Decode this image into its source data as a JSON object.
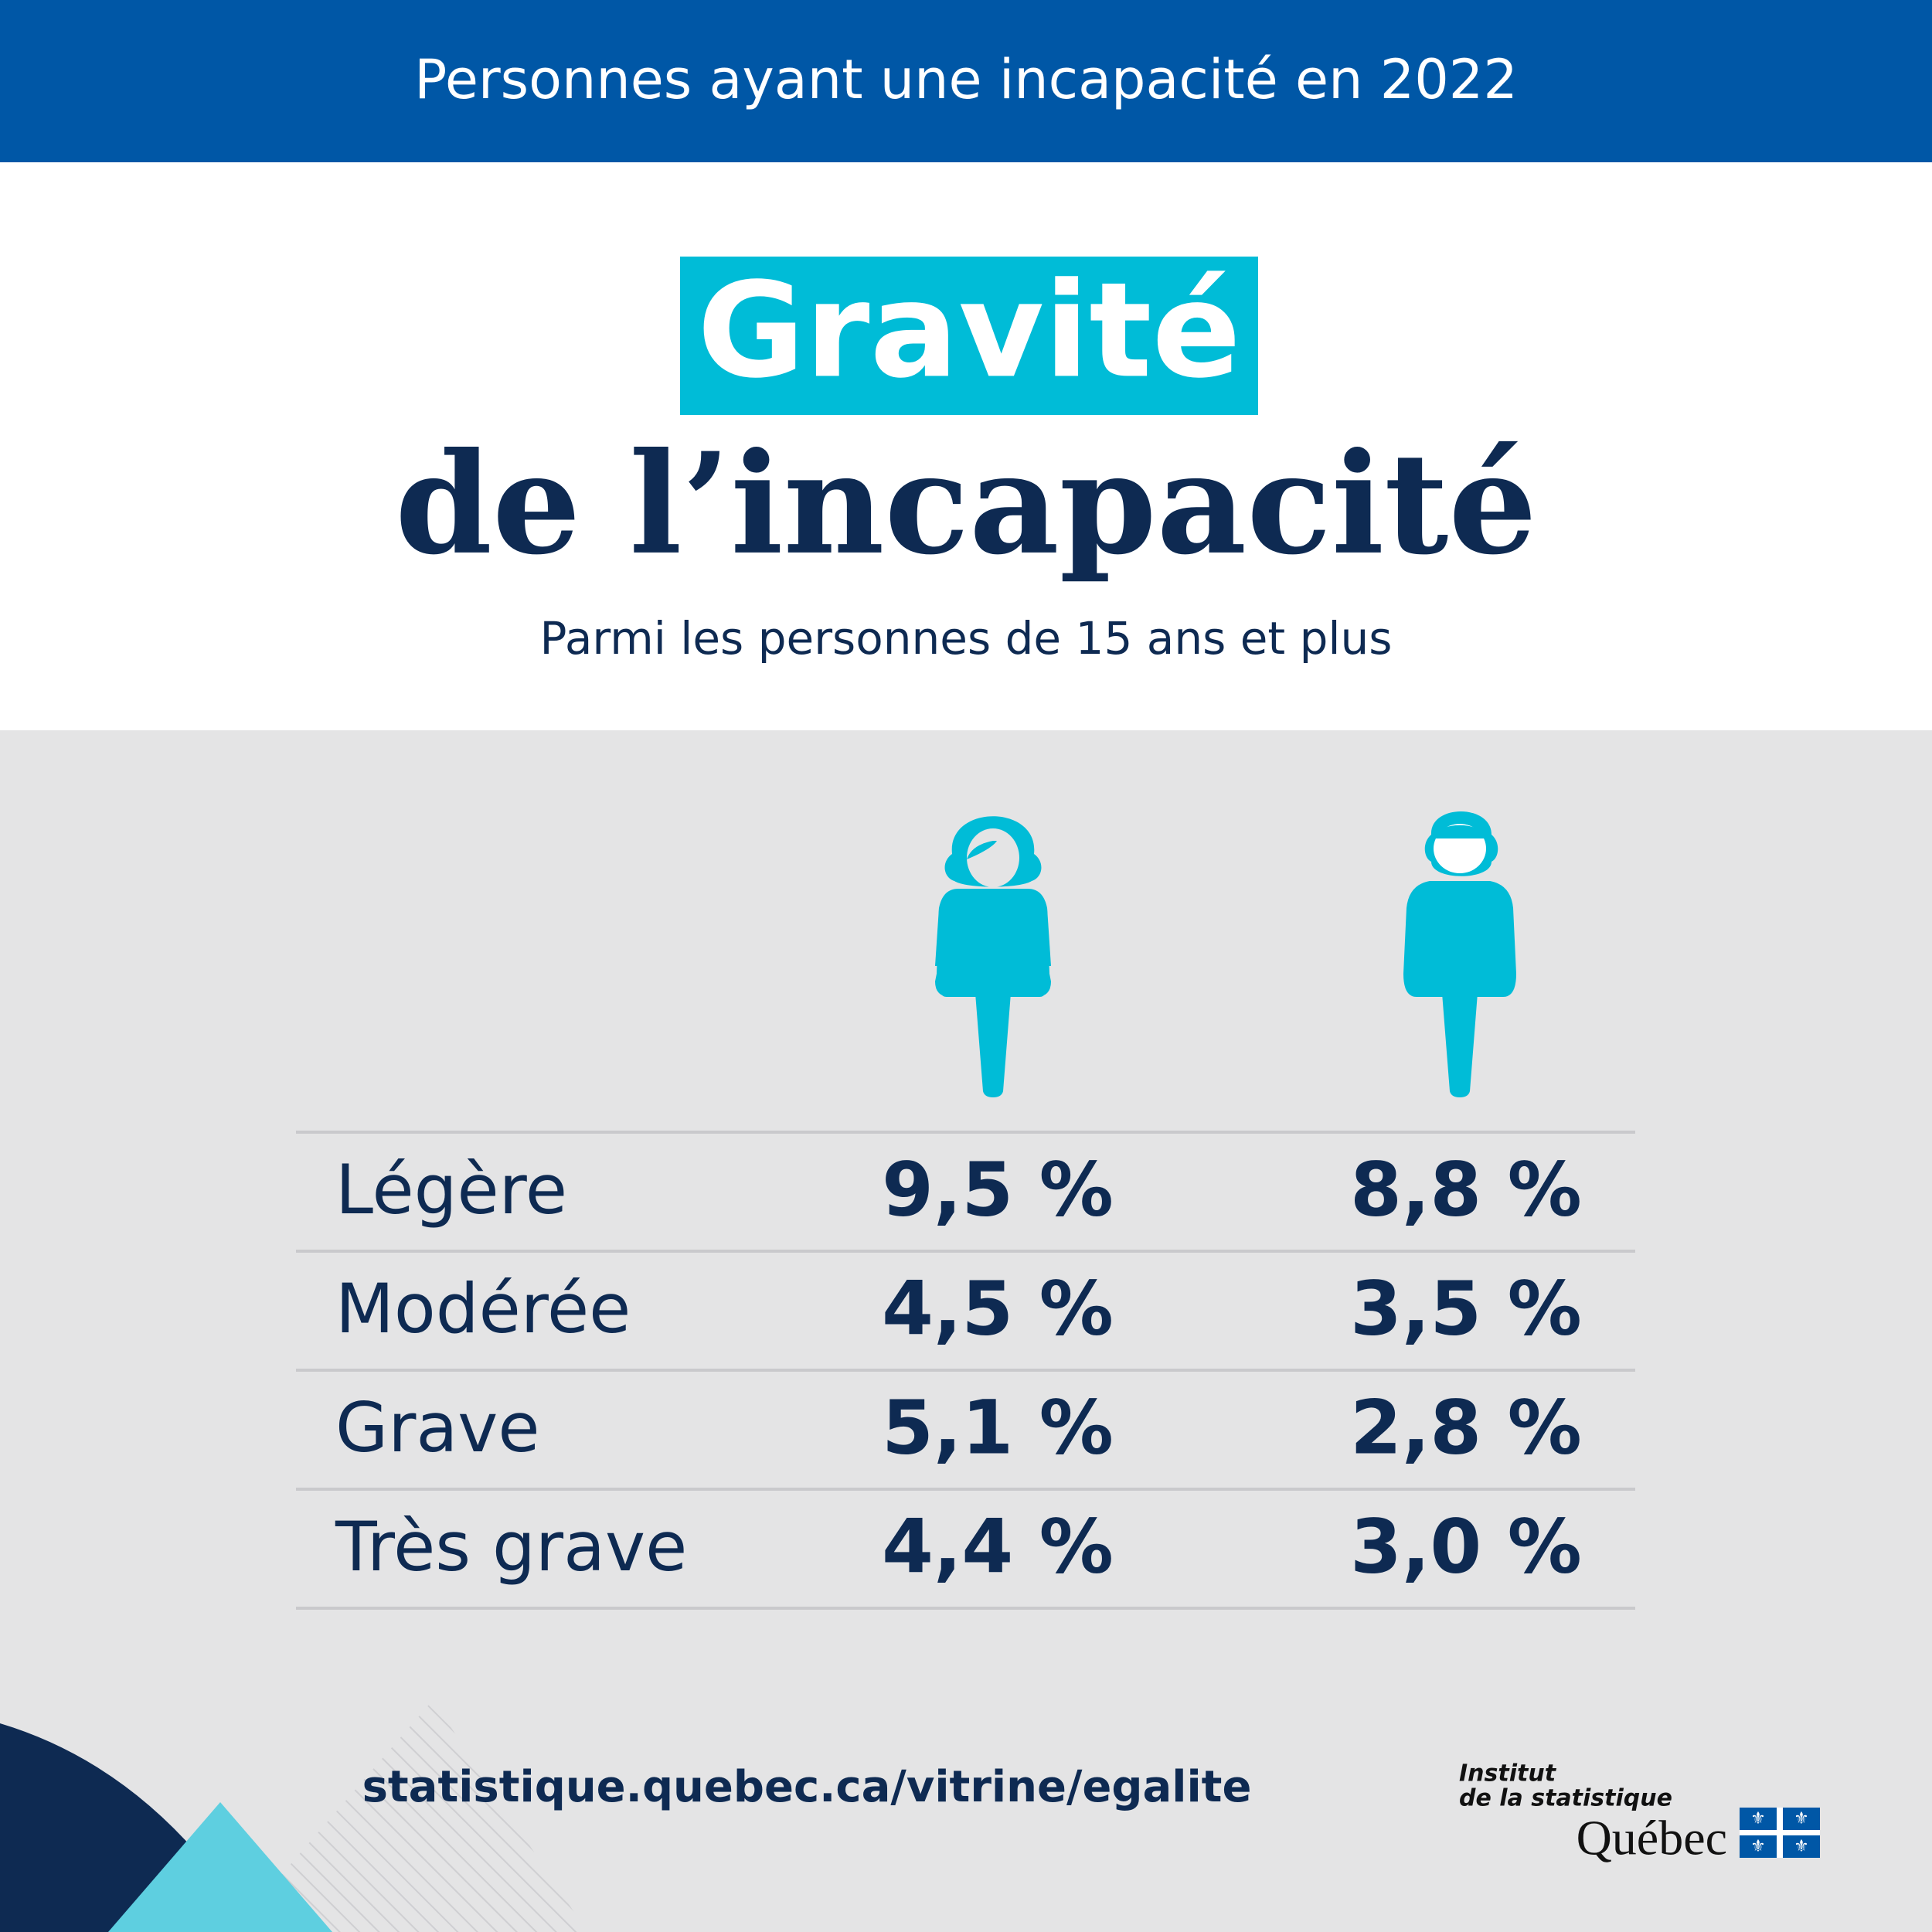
{
  "header": {
    "title": "Personnes ayant une incapacité en 2022"
  },
  "headline": {
    "highlight": "Gravité",
    "title": "de l’incapacité",
    "subtitle": "Parmi les personnes de 15 ans et plus"
  },
  "table": {
    "rows": [
      [
        "Légère",
        "9,5 %",
        "8,8 %"
      ],
      [
        "Modérée",
        "4,5 %",
        "3,5 %"
      ],
      [
        "Grave",
        "5,1 %",
        "2,8 %"
      ],
      [
        "Très grave",
        "4,4 %",
        "3,0 %"
      ]
    ]
  },
  "footer": {
    "url": "statistique.quebec.ca/vitrine/egalite"
  },
  "logo": {
    "line1": "Institut",
    "line2": "de la statistique",
    "line3": "Québec"
  }
}
